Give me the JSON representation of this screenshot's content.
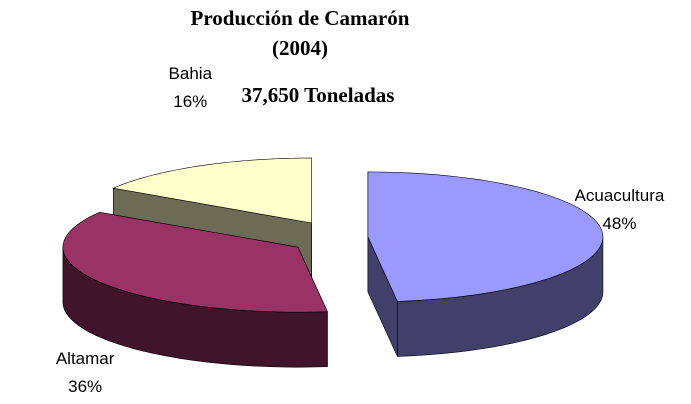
{
  "chart_data": {
    "type": "pie",
    "title": "Producción de Camarón",
    "subtitle": "(2004)",
    "annotations": [
      "37,650 Toneladas"
    ],
    "categories": [
      "Acuacultura",
      "Altamar",
      "Bahia"
    ],
    "values": [
      48,
      36,
      16
    ],
    "value_labels": [
      "48%",
      "36%",
      "16%"
    ],
    "colors": [
      "#9999ff",
      "#993366",
      "#ffffcc"
    ]
  }
}
